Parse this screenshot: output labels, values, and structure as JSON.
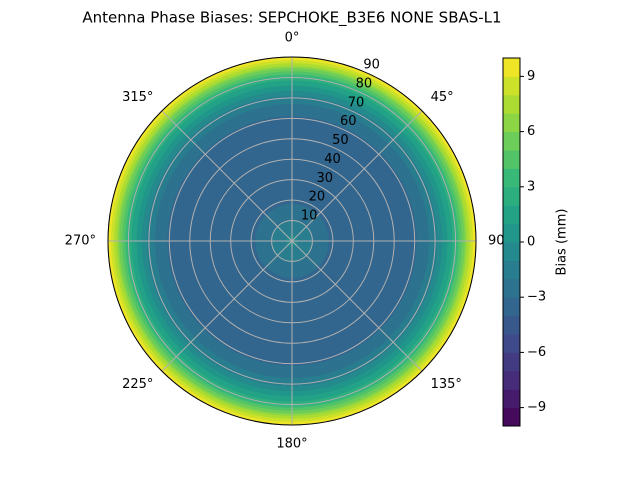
{
  "chart_data": {
    "type": "polar-contour",
    "title": "Antenna Phase Biases: SEPCHOKE_B3E6   NONE SBAS-L1",
    "r": [
      0,
      10,
      20,
      30,
      40,
      50,
      60,
      70,
      80,
      90
    ],
    "values": [
      -0.5,
      -2,
      -3.2,
      -3.6,
      -3.6,
      -3.6,
      -3.2,
      -1.5,
      2.5,
      10
    ],
    "rlim": [
      0,
      90
    ],
    "rticks": [
      10,
      20,
      30,
      40,
      50,
      60,
      70,
      80,
      90
    ],
    "theta_ticks": [
      {
        "value": 0,
        "label": "0°"
      },
      {
        "value": 45,
        "label": "45°"
      },
      {
        "value": 90,
        "label": "90°"
      },
      {
        "value": 135,
        "label": "135°"
      },
      {
        "value": 180,
        "label": "180°"
      },
      {
        "value": 225,
        "label": "225°"
      },
      {
        "value": 270,
        "label": "270°"
      },
      {
        "value": 315,
        "label": "315°"
      }
    ],
    "theta_direction": "clockwise",
    "theta_zero": "top",
    "grid": true,
    "colormap": "viridis",
    "colorbar": {
      "label": "Bias (mm)",
      "lim": [
        -10,
        10
      ],
      "levels": [
        -10,
        -9,
        -8,
        -7,
        -6,
        -5,
        -4,
        -3,
        -2,
        -1,
        0,
        1,
        2,
        3,
        4,
        5,
        6,
        7,
        8,
        9,
        10
      ],
      "ticks": [
        {
          "value": -9,
          "label": "−9"
        },
        {
          "value": -6,
          "label": "−6"
        },
        {
          "value": -3,
          "label": "−3"
        },
        0,
        3,
        6,
        9
      ]
    }
  }
}
